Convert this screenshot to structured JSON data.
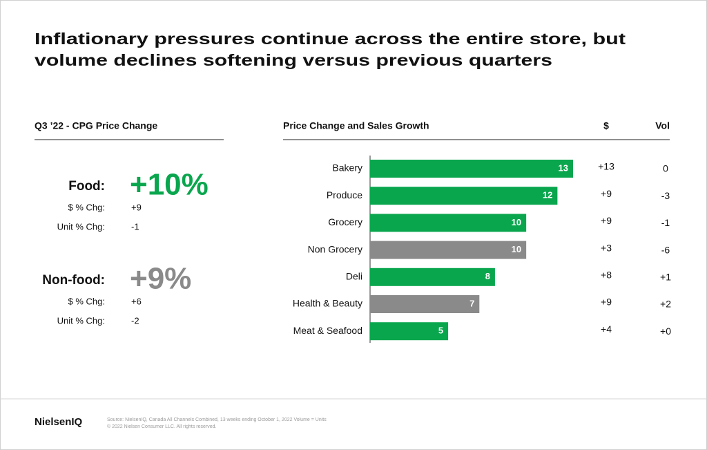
{
  "title_lines": [
    "Inflationary pressures continue across the entire store, but",
    "volume declines softening versus previous quarters"
  ],
  "left_panel": {
    "heading": "Q3 ’22 - CPG Price Change",
    "groups": [
      {
        "label": "Food:",
        "headline": "+10%",
        "color": "#0aa64e",
        "rows": [
          [
            "$ % Chg:",
            "+9"
          ],
          [
            "Unit % Chg:",
            "-1"
          ]
        ]
      },
      {
        "label": "Non-food:",
        "headline": "+9%",
        "color": "#8a8a8a",
        "rows": [
          [
            "$ % Chg:",
            "+6"
          ],
          [
            "Unit % Chg:",
            "-2"
          ]
        ]
      }
    ]
  },
  "chart_data": {
    "type": "bar",
    "orientation": "horizontal",
    "title": "Price Change and Sales Growth",
    "categories": [
      "Bakery",
      "Produce",
      "Grocery",
      "Non Grocery",
      "Deli",
      "Health & Beauty",
      "Meat & Seafood"
    ],
    "values": [
      13,
      12,
      10,
      10,
      8,
      7,
      5
    ],
    "colors": [
      "#0aa64e",
      "#0aa64e",
      "#0aa64e",
      "#8a8a8a",
      "#0aa64e",
      "#8a8a8a",
      "#0aa64e"
    ],
    "columns": [
      {
        "header": "$",
        "values": [
          "+13",
          "+9",
          "+9",
          "+3",
          "+8",
          "+9",
          "+4"
        ]
      },
      {
        "header": "Vol",
        "values": [
          "0",
          "-3",
          "-1",
          "-6",
          "+1",
          "+2",
          "+0"
        ]
      }
    ]
  },
  "footer": {
    "brand": "NielsenIQ",
    "source": "Source: NielsenIQ, Canada All Channels Combined, 13 weeks ending October 1, 2022  Volume = Units",
    "copyright": "© 2022 Nielsen Consumer LLC. All rights reserved."
  }
}
